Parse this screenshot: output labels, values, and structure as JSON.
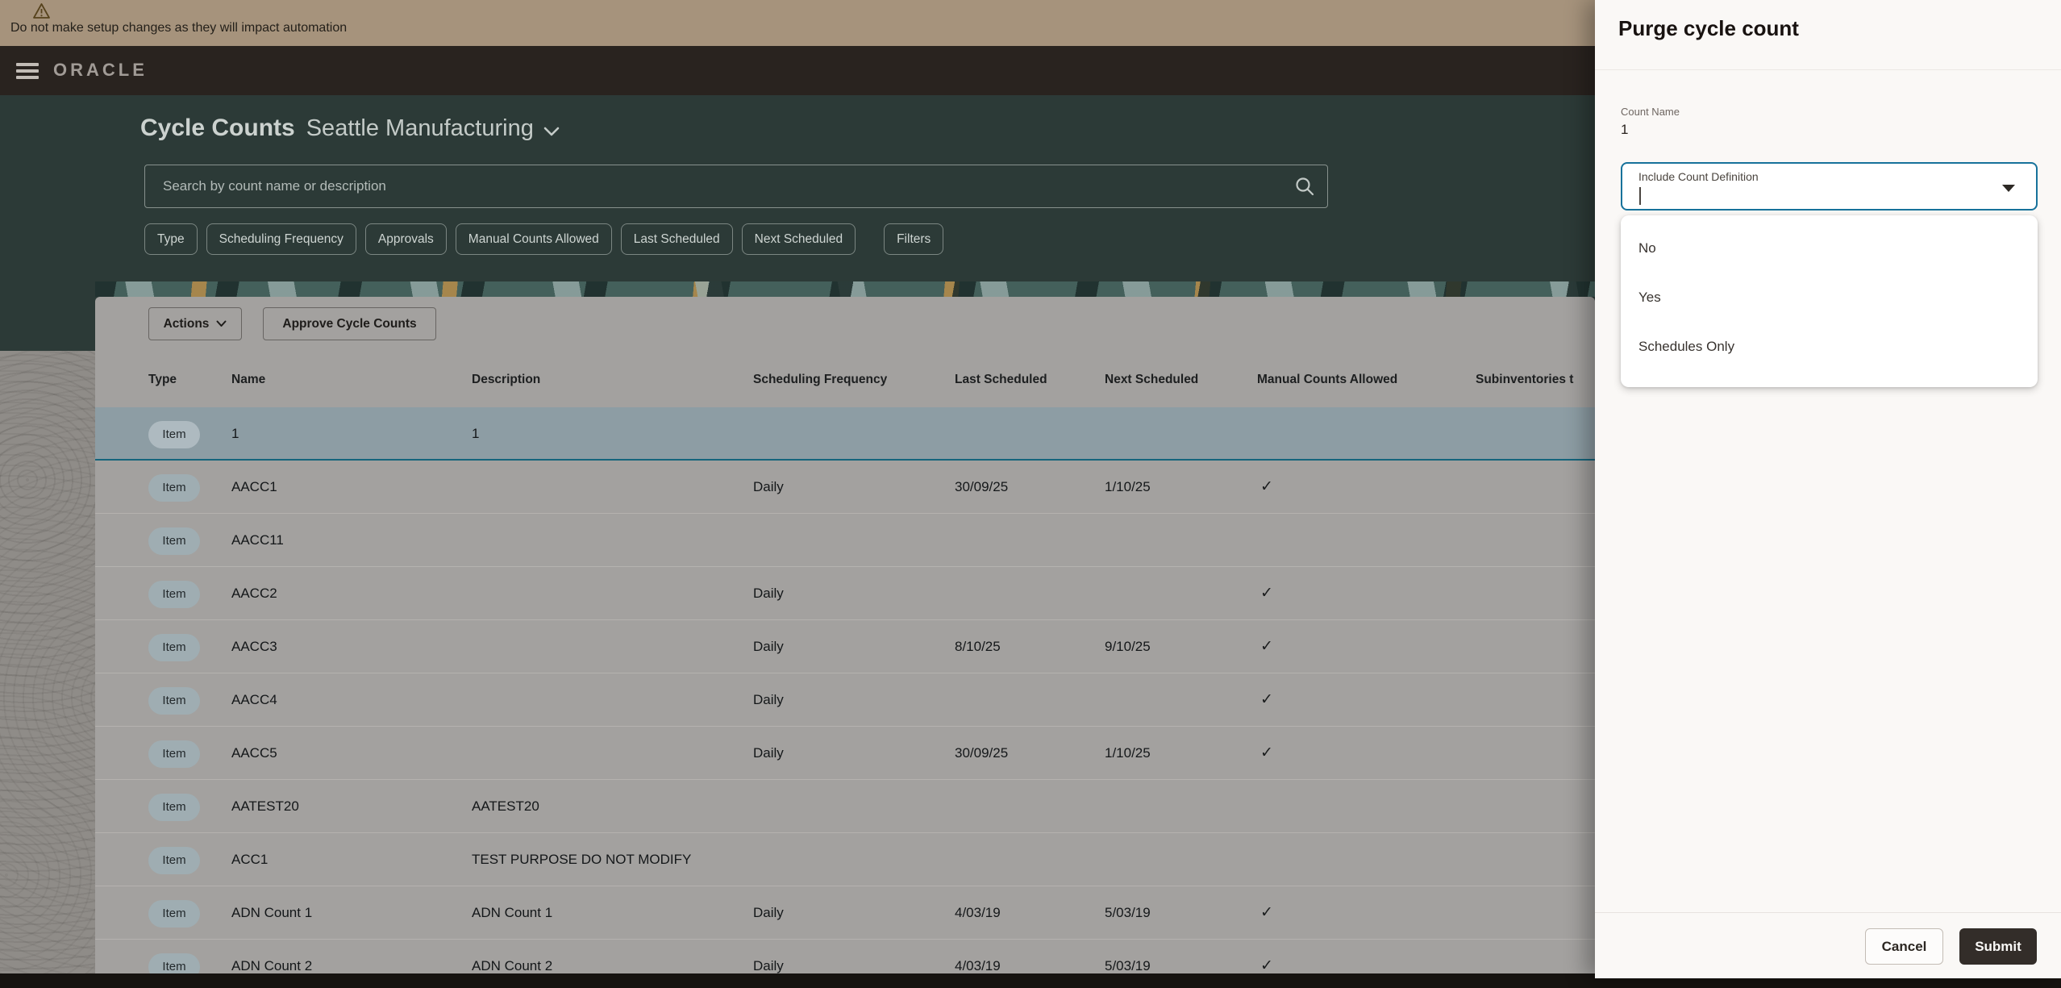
{
  "banner": {
    "warning_text": "Do not make setup changes as they will impact automation"
  },
  "header": {
    "brand": "ORACLE"
  },
  "hero": {
    "title": "Cycle Counts",
    "org": "Seattle Manufacturing",
    "search_placeholder": "Search by count name or description",
    "filter_chips": [
      "Type",
      "Scheduling Frequency",
      "Approvals",
      "Manual Counts Allowed",
      "Last Scheduled",
      "Next Scheduled",
      "Filters"
    ]
  },
  "toolbar": {
    "actions_label": "Actions",
    "approve_label": "Approve Cycle Counts"
  },
  "table": {
    "columns": [
      "Type",
      "Name",
      "Description",
      "Scheduling Frequency",
      "Last Scheduled",
      "Next Scheduled",
      "Manual Counts Allowed",
      "Subinventories t"
    ],
    "check_glyph": "✓",
    "rows": [
      {
        "type": "Item",
        "name": "1",
        "description": "1",
        "frequency": "",
        "last": "",
        "next": "",
        "manual": false,
        "selected": true
      },
      {
        "type": "Item",
        "name": "AACC1",
        "description": "",
        "frequency": "Daily",
        "last": "30/09/25",
        "next": "1/10/25",
        "manual": true,
        "selected": false
      },
      {
        "type": "Item",
        "name": "AACC11",
        "description": "",
        "frequency": "",
        "last": "",
        "next": "",
        "manual": false,
        "selected": false
      },
      {
        "type": "Item",
        "name": "AACC2",
        "description": "",
        "frequency": "Daily",
        "last": "",
        "next": "",
        "manual": true,
        "selected": false
      },
      {
        "type": "Item",
        "name": "AACC3",
        "description": "",
        "frequency": "Daily",
        "last": "8/10/25",
        "next": "9/10/25",
        "manual": true,
        "selected": false
      },
      {
        "type": "Item",
        "name": "AACC4",
        "description": "",
        "frequency": "Daily",
        "last": "",
        "next": "",
        "manual": true,
        "selected": false
      },
      {
        "type": "Item",
        "name": "AACC5",
        "description": "",
        "frequency": "Daily",
        "last": "30/09/25",
        "next": "1/10/25",
        "manual": true,
        "selected": false
      },
      {
        "type": "Item",
        "name": "AATEST20",
        "description": "AATEST20",
        "frequency": "",
        "last": "",
        "next": "",
        "manual": false,
        "selected": false
      },
      {
        "type": "Item",
        "name": "ACC1",
        "description": "TEST PURPOSE DO NOT MODIFY",
        "frequency": "",
        "last": "",
        "next": "",
        "manual": false,
        "selected": false
      },
      {
        "type": "Item",
        "name": "ADN Count 1",
        "description": "ADN Count 1",
        "frequency": "Daily",
        "last": "4/03/19",
        "next": "5/03/19",
        "manual": true,
        "selected": false
      },
      {
        "type": "Item",
        "name": "ADN Count 2",
        "description": "ADN Count 2",
        "frequency": "Daily",
        "last": "4/03/19",
        "next": "5/03/19",
        "manual": true,
        "selected": false
      }
    ]
  },
  "panel": {
    "title": "Purge cycle count",
    "count_name_label": "Count Name",
    "count_name_value": "1",
    "dropdown_label": "Include Count Definition",
    "options": [
      "No",
      "Yes",
      "Schedules Only"
    ],
    "cancel_label": "Cancel",
    "submit_label": "Submit"
  },
  "colors": {
    "warning_banner": "#a6937c",
    "app_header": "#29231f",
    "hero_teal": "#2c3a37",
    "card_bg": "#a3a19f",
    "selected_row": "#8d9da4",
    "selected_row_border": "#15657c",
    "field_focus_border": "#17729b",
    "submit_bg": "#332d29",
    "panel_bg": "#faf8f6"
  }
}
